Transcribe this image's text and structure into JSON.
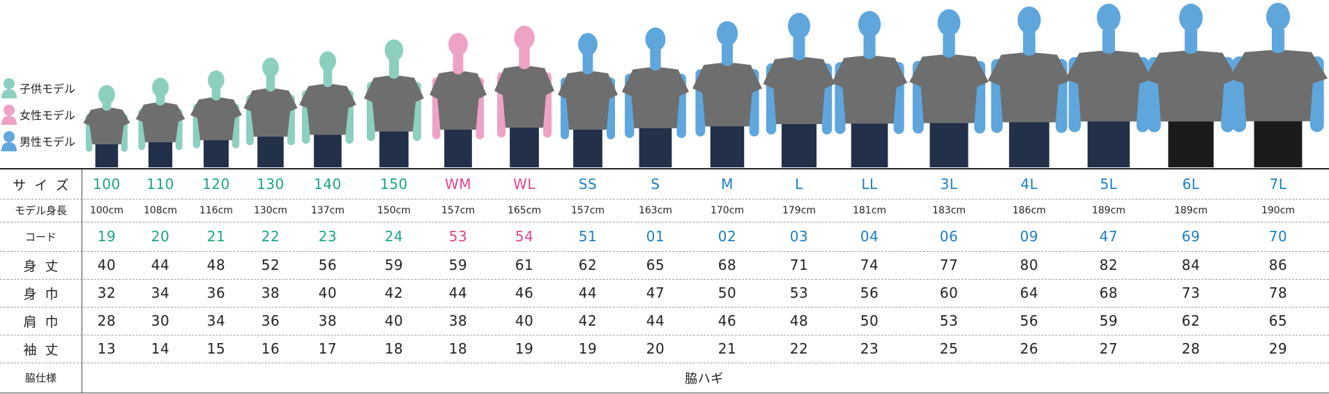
{
  "colors": {
    "kid": "#8ccfbf",
    "woman": "#eea2c5",
    "man": "#5fa6dd",
    "shirt": "#6e6e6e",
    "pants": "#22304a",
    "kid_text": "#1aa58a",
    "woman_text": "#e2428c",
    "man_text": "#1a7fc4"
  },
  "legend": [
    {
      "label": "子供モデル",
      "group": "kid"
    },
    {
      "label": "女性モデル",
      "group": "woman"
    },
    {
      "label": "男性モデル",
      "group": "man"
    }
  ],
  "table": {
    "headers": {
      "size": "サイズ",
      "model_height": "モデル身長",
      "code": "コード",
      "length": "身丈",
      "body_width": "身巾",
      "shoulder": "肩巾",
      "sleeve": "袖丈",
      "side": "脇仕様"
    },
    "side_value": "脇ハギ",
    "columns": [
      {
        "size": "100",
        "group": "kid",
        "model_height": "100cm",
        "code": "19",
        "length": "40",
        "body_width": "32",
        "shoulder": "28",
        "sleeve": "13"
      },
      {
        "size": "110",
        "group": "kid",
        "model_height": "108cm",
        "code": "20",
        "length": "44",
        "body_width": "34",
        "shoulder": "30",
        "sleeve": "14"
      },
      {
        "size": "120",
        "group": "kid",
        "model_height": "116cm",
        "code": "21",
        "length": "48",
        "body_width": "36",
        "shoulder": "34",
        "sleeve": "15"
      },
      {
        "size": "130",
        "group": "kid",
        "model_height": "130cm",
        "code": "22",
        "length": "52",
        "body_width": "38",
        "shoulder": "36",
        "sleeve": "16"
      },
      {
        "size": "140",
        "group": "kid",
        "model_height": "137cm",
        "code": "23",
        "length": "56",
        "body_width": "40",
        "shoulder": "38",
        "sleeve": "17"
      },
      {
        "size": "150",
        "group": "kid",
        "model_height": "150cm",
        "code": "24",
        "length": "59",
        "body_width": "42",
        "shoulder": "40",
        "sleeve": "18"
      },
      {
        "size": "WM",
        "group": "woman",
        "model_height": "157cm",
        "code": "53",
        "length": "59",
        "body_width": "44",
        "shoulder": "38",
        "sleeve": "18"
      },
      {
        "size": "WL",
        "group": "woman",
        "model_height": "165cm",
        "code": "54",
        "length": "61",
        "body_width": "46",
        "shoulder": "40",
        "sleeve": "19"
      },
      {
        "size": "SS",
        "group": "man",
        "model_height": "157cm",
        "code": "51",
        "length": "62",
        "body_width": "44",
        "shoulder": "42",
        "sleeve": "19"
      },
      {
        "size": "S",
        "group": "man",
        "model_height": "163cm",
        "code": "01",
        "length": "65",
        "body_width": "47",
        "shoulder": "44",
        "sleeve": "20"
      },
      {
        "size": "M",
        "group": "man",
        "model_height": "170cm",
        "code": "02",
        "length": "68",
        "body_width": "50",
        "shoulder": "46",
        "sleeve": "21"
      },
      {
        "size": "L",
        "group": "man",
        "model_height": "179cm",
        "code": "03",
        "length": "71",
        "body_width": "53",
        "shoulder": "48",
        "sleeve": "22"
      },
      {
        "size": "LL",
        "group": "man",
        "model_height": "181cm",
        "code": "04",
        "length": "74",
        "body_width": "56",
        "shoulder": "50",
        "sleeve": "23"
      },
      {
        "size": "3L",
        "group": "man",
        "model_height": "183cm",
        "code": "06",
        "length": "77",
        "body_width": "60",
        "shoulder": "53",
        "sleeve": "25"
      },
      {
        "size": "4L",
        "group": "man",
        "model_height": "186cm",
        "code": "09",
        "length": "80",
        "body_width": "64",
        "shoulder": "56",
        "sleeve": "26"
      },
      {
        "size": "5L",
        "group": "man",
        "model_height": "189cm",
        "code": "47",
        "length": "82",
        "body_width": "68",
        "shoulder": "59",
        "sleeve": "27"
      },
      {
        "size": "6L",
        "group": "man",
        "model_height": "189cm",
        "code": "69",
        "length": "84",
        "body_width": "73",
        "shoulder": "62",
        "sleeve": "28"
      },
      {
        "size": "7L",
        "group": "man",
        "model_height": "190cm",
        "code": "70",
        "length": "86",
        "body_width": "78",
        "shoulder": "65",
        "sleeve": "29"
      }
    ]
  }
}
